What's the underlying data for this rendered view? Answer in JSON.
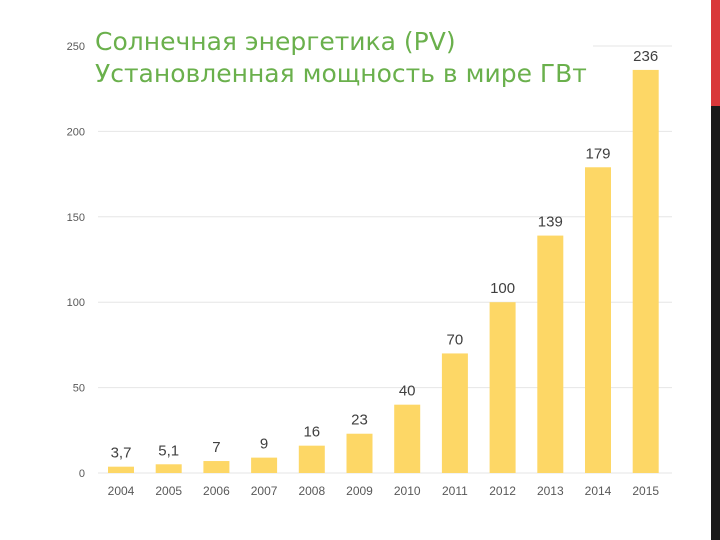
{
  "slide": {
    "title_line1": "Солнечная энергетика (PV)",
    "title_line2": "Установленная мощность в мире ГВт"
  },
  "colors": {
    "bar": "#fdd766",
    "title": "#6ab04c",
    "accent": "#d9383a",
    "side_bar": "#1a1a1a",
    "grid": "#e6e6e6",
    "tick_text": "#595959",
    "label_text": "#404040"
  },
  "chart_data": {
    "type": "bar",
    "title": "Солнечная энергетика (PV) Установленная мощность в мире ГВт",
    "xlabel": "",
    "ylabel": "",
    "categories": [
      "2004",
      "2005",
      "2006",
      "2007",
      "2008",
      "2009",
      "2010",
      "2011",
      "2012",
      "2013",
      "2014",
      "2015"
    ],
    "values": [
      3.7,
      5.1,
      7,
      9,
      16,
      23,
      40,
      70,
      100,
      139,
      179,
      236
    ],
    "data_labels": [
      "3,7",
      "5,1",
      "7",
      "9",
      "16",
      "23",
      "40",
      "70",
      "100",
      "139",
      "179",
      "236"
    ],
    "ylim": [
      0,
      250
    ],
    "yticks": [
      "0",
      "50",
      "100",
      "150",
      "200",
      "250"
    ],
    "ytick_values": [
      0,
      50,
      100,
      150,
      200,
      250
    ],
    "grid": true,
    "legend": "none"
  }
}
